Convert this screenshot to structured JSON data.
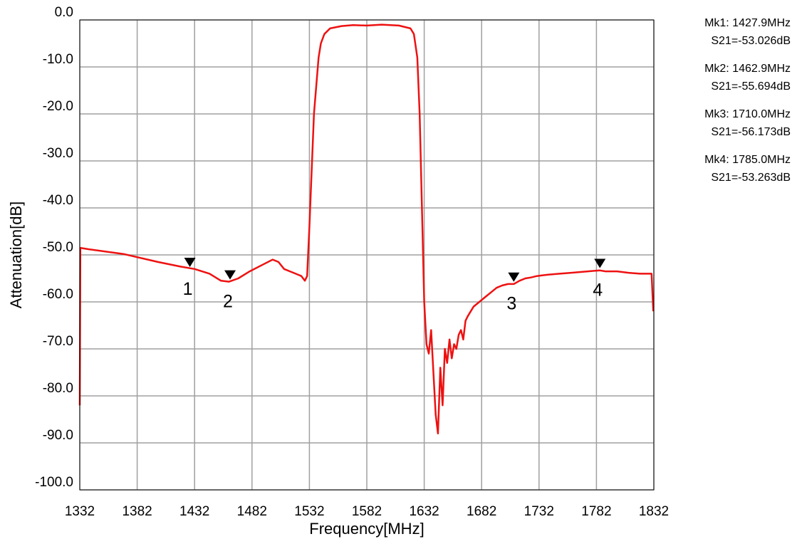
{
  "chart_data": {
    "type": "line",
    "title": "",
    "xlabel": "Frequency[MHz]",
    "ylabel": "Attenuation[dB]",
    "xlim": [
      1332,
      1832
    ],
    "ylim": [
      -100,
      0
    ],
    "grid": true,
    "x_ticks": [
      "1332",
      "1382",
      "1432",
      "1482",
      "1532",
      "1582",
      "1632",
      "1682",
      "1732",
      "1782",
      "1832"
    ],
    "y_ticks": [
      "0.0",
      "-10.0",
      "-20.0",
      "-30.0",
      "-40.0",
      "-50.0",
      "-60.0",
      "-70.0",
      "-80.0",
      "-90.0",
      "-100.0"
    ],
    "series": [
      {
        "color": "#ee1111",
        "x": [
          1332,
          1332.5,
          1340,
          1370,
          1400,
          1420,
          1432,
          1445,
          1455,
          1462,
          1470,
          1480,
          1492,
          1500,
          1505,
          1510,
          1515,
          1520,
          1525,
          1528,
          1530,
          1532,
          1536,
          1540,
          1542,
          1545,
          1550,
          1560,
          1570,
          1582,
          1595,
          1610,
          1620,
          1623,
          1626,
          1628,
          1630,
          1632,
          1634,
          1636,
          1638,
          1640,
          1642,
          1644,
          1646,
          1648,
          1650,
          1652,
          1654,
          1656,
          1658,
          1660,
          1662,
          1664,
          1666,
          1668,
          1670,
          1675,
          1680,
          1685,
          1690,
          1695,
          1700,
          1705,
          1710,
          1715,
          1720,
          1725,
          1730,
          1740,
          1750,
          1760,
          1770,
          1780,
          1785,
          1790,
          1800,
          1810,
          1820,
          1830,
          1831.5
        ],
        "y": [
          -82,
          -48.5,
          -48.8,
          -49.8,
          -51.5,
          -52.5,
          -53.0,
          -54.0,
          -55.5,
          -55.7,
          -55.0,
          -53.5,
          -52.0,
          -51.0,
          -51.5,
          -53.0,
          -53.5,
          -54.0,
          -54.5,
          -55.5,
          -54.5,
          -44,
          -20,
          -8,
          -5,
          -3,
          -1.8,
          -1.3,
          -1.1,
          -1.2,
          -1.0,
          -1.2,
          -1.8,
          -3,
          -8,
          -20,
          -40,
          -60,
          -69,
          -71,
          -66,
          -75,
          -84,
          -88,
          -74,
          -82,
          -70,
          -73,
          -68,
          -72,
          -69,
          -70,
          -67,
          -66,
          -68,
          -64,
          -63,
          -61,
          -60,
          -59,
          -58,
          -57,
          -56.5,
          -56.2,
          -56.2,
          -55.5,
          -55,
          -54.8,
          -54.5,
          -54.2,
          -54,
          -53.8,
          -53.6,
          -53.4,
          -53.3,
          -53.5,
          -53.5,
          -53.8,
          -54,
          -54,
          -62
        ]
      }
    ],
    "markers": [
      {
        "label": "1",
        "x": 1427.9,
        "y": -53.026
      },
      {
        "label": "2",
        "x": 1462.9,
        "y": -55.694
      },
      {
        "label": "3",
        "x": 1710.0,
        "y": -56.173
      },
      {
        "label": "4",
        "x": 1785.0,
        "y": -53.263
      }
    ]
  },
  "readouts": [
    {
      "mk": "Mk1: 1427.9MHz",
      "val": "S21=-53.026dB"
    },
    {
      "mk": "Mk2: 1462.9MHz",
      "val": "S21=-55.694dB"
    },
    {
      "mk": "Mk3: 1710.0MHz",
      "val": "S21=-56.173dB"
    },
    {
      "mk": "Mk4: 1785.0MHz",
      "val": "S21=-53.263dB"
    }
  ]
}
